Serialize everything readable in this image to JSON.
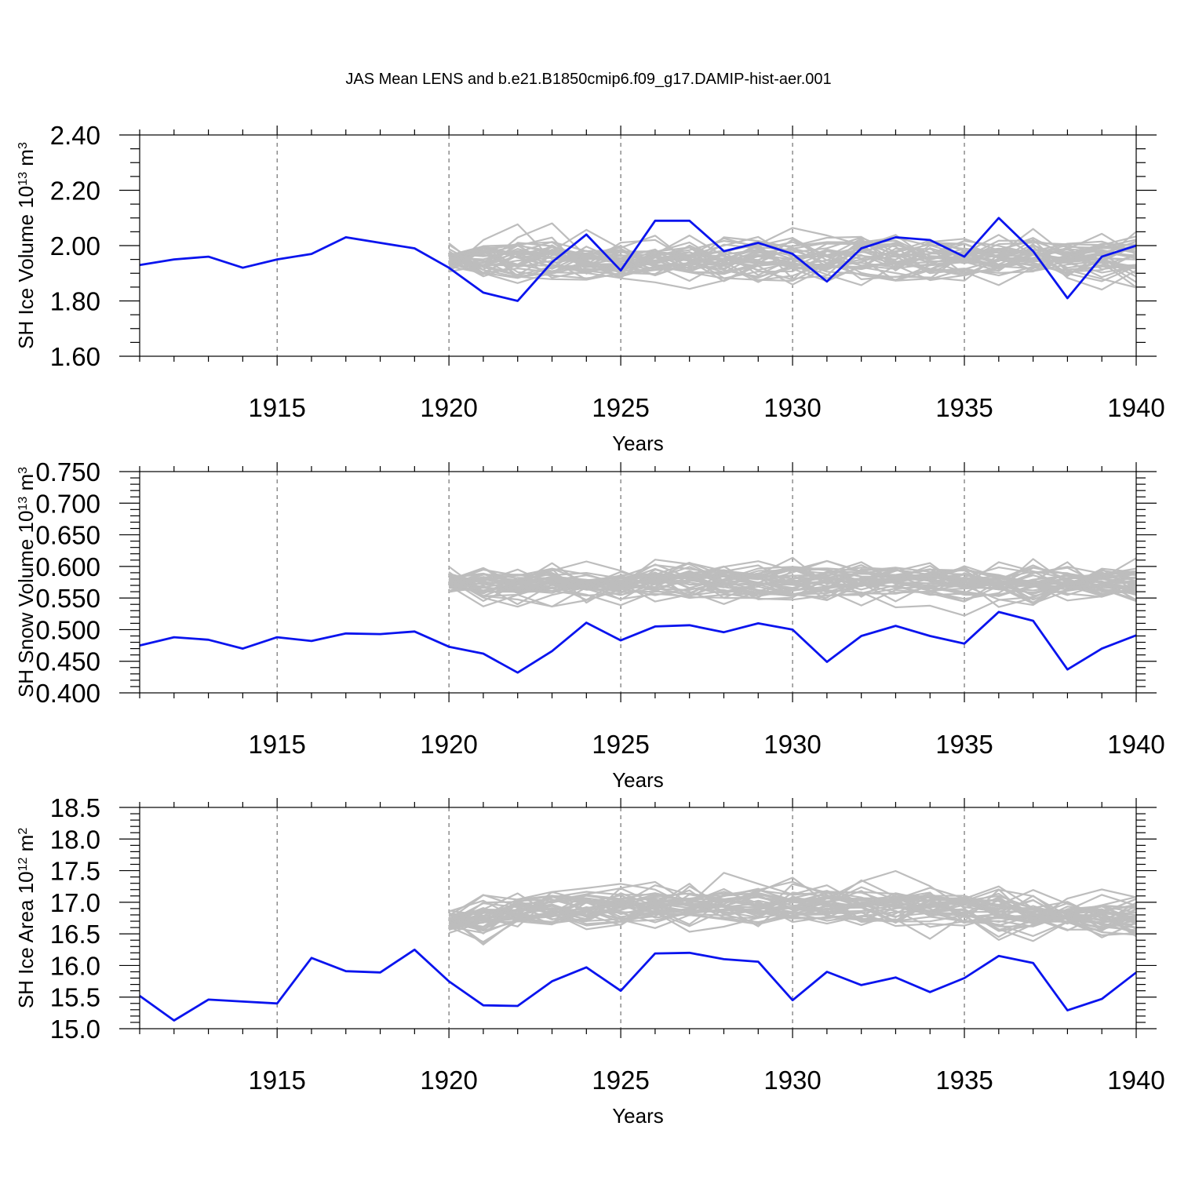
{
  "title": "JAS Mean LENS and b.e21.B1850cmip6.f09_g17.DAMIP-hist-aer.001",
  "colors": {
    "ensemble": "#bdbdbd",
    "experiment": "#0a14ee"
  },
  "chart_data": [
    {
      "type": "line",
      "ylabel_main": "SH Ice Volume 10",
      "ylabel_exp": "13",
      "ylabel_unit": " m",
      "ylabel_unit_exp": "3",
      "xlabel": "Years",
      "xlim": [
        1911,
        1940
      ],
      "ylim": [
        1.6,
        2.4
      ],
      "x_ticks": [
        "1915",
        "1920",
        "1925",
        "1930",
        "1935",
        "1940"
      ],
      "y_ticks": [
        "1.60",
        "1.80",
        "2.00",
        "2.20",
        "2.40"
      ],
      "y_major_step": 0.2,
      "y_minor_step": 0.05,
      "grid": "dashed at major x ticks",
      "ensemble_start": 1920,
      "ensemble_count": 40,
      "ensemble_mean": 1.95,
      "ensemble_spread": 0.07,
      "series": [
        {
          "name": "b.e21.B1850cmip6.f09_g17.DAMIP-hist-aer.001",
          "x": [
            1911,
            1912,
            1913,
            1914,
            1915,
            1916,
            1917,
            1918,
            1919,
            1920,
            1921,
            1922,
            1923,
            1924,
            1925,
            1926,
            1927,
            1928,
            1929,
            1930,
            1931,
            1932,
            1933,
            1934,
            1935,
            1936,
            1937,
            1938,
            1939,
            1940
          ],
          "values": [
            1.93,
            1.95,
            1.96,
            1.92,
            1.95,
            1.97,
            2.03,
            2.01,
            1.99,
            1.92,
            1.83,
            1.8,
            1.94,
            2.04,
            1.91,
            2.09,
            2.09,
            1.98,
            2.01,
            1.97,
            1.87,
            1.99,
            2.03,
            2.02,
            1.96,
            2.1,
            1.98,
            1.81,
            1.96,
            2.0
          ]
        }
      ]
    },
    {
      "type": "line",
      "ylabel_main": "SH Snow Volume 10",
      "ylabel_exp": "13",
      "ylabel_unit": " m",
      "ylabel_unit_exp": "3",
      "xlabel": "Years",
      "xlim": [
        1911,
        1940
      ],
      "ylim": [
        0.4,
        0.75
      ],
      "x_ticks": [
        "1915",
        "1920",
        "1925",
        "1930",
        "1935",
        "1940"
      ],
      "y_ticks": [
        "0.400",
        "0.450",
        "0.500",
        "0.550",
        "0.600",
        "0.650",
        "0.700",
        "0.750"
      ],
      "y_major_step": 0.05,
      "y_minor_step": 0.01,
      "grid": "dashed at major x ticks",
      "ensemble_start": 1920,
      "ensemble_count": 40,
      "ensemble_mean": 0.575,
      "ensemble_spread": 0.025,
      "series": [
        {
          "name": "b.e21.B1850cmip6.f09_g17.DAMIP-hist-aer.001",
          "x": [
            1911,
            1912,
            1913,
            1914,
            1915,
            1916,
            1917,
            1918,
            1919,
            1920,
            1921,
            1922,
            1923,
            1924,
            1925,
            1926,
            1927,
            1928,
            1929,
            1930,
            1931,
            1932,
            1933,
            1934,
            1935,
            1936,
            1937,
            1938,
            1939,
            1940
          ],
          "values": [
            0.475,
            0.488,
            0.484,
            0.47,
            0.488,
            0.482,
            0.494,
            0.493,
            0.497,
            0.473,
            0.462,
            0.432,
            0.466,
            0.511,
            0.483,
            0.505,
            0.507,
            0.496,
            0.51,
            0.5,
            0.449,
            0.49,
            0.506,
            0.49,
            0.478,
            0.528,
            0.514,
            0.437,
            0.47,
            0.491
          ]
        }
      ]
    },
    {
      "type": "line",
      "ylabel_main": "SH Ice Area 10",
      "ylabel_exp": "12",
      "ylabel_unit": " m",
      "ylabel_unit_exp": "2",
      "xlabel": "Years",
      "xlim": [
        1911,
        1940
      ],
      "ylim": [
        15.0,
        18.5
      ],
      "x_ticks": [
        "1915",
        "1920",
        "1925",
        "1930",
        "1935",
        "1940"
      ],
      "y_ticks": [
        "15.0",
        "15.5",
        "16.0",
        "16.5",
        "17.0",
        "17.5",
        "18.0",
        "18.5"
      ],
      "y_major_step": 0.5,
      "y_minor_step": 0.1,
      "grid": "dashed at major x ticks",
      "ensemble_start": 1920,
      "ensemble_count": 40,
      "ensemble_mean": 16.75,
      "ensemble_spread": 0.28,
      "series": [
        {
          "name": "b.e21.B1850cmip6.f09_g17.DAMIP-hist-aer.001",
          "x": [
            1911,
            1912,
            1913,
            1914,
            1915,
            1916,
            1917,
            1918,
            1919,
            1920,
            1921,
            1922,
            1923,
            1924,
            1925,
            1926,
            1927,
            1928,
            1929,
            1930,
            1931,
            1932,
            1933,
            1934,
            1935,
            1936,
            1937,
            1938,
            1939,
            1940
          ],
          "values": [
            15.52,
            15.13,
            15.46,
            15.43,
            15.4,
            16.12,
            15.91,
            15.89,
            16.25,
            15.75,
            15.37,
            15.36,
            15.75,
            15.97,
            15.6,
            16.19,
            16.2,
            16.1,
            16.06,
            15.45,
            15.9,
            15.69,
            15.81,
            15.58,
            15.8,
            16.15,
            16.04,
            15.29,
            15.47,
            15.89
          ]
        }
      ]
    }
  ]
}
